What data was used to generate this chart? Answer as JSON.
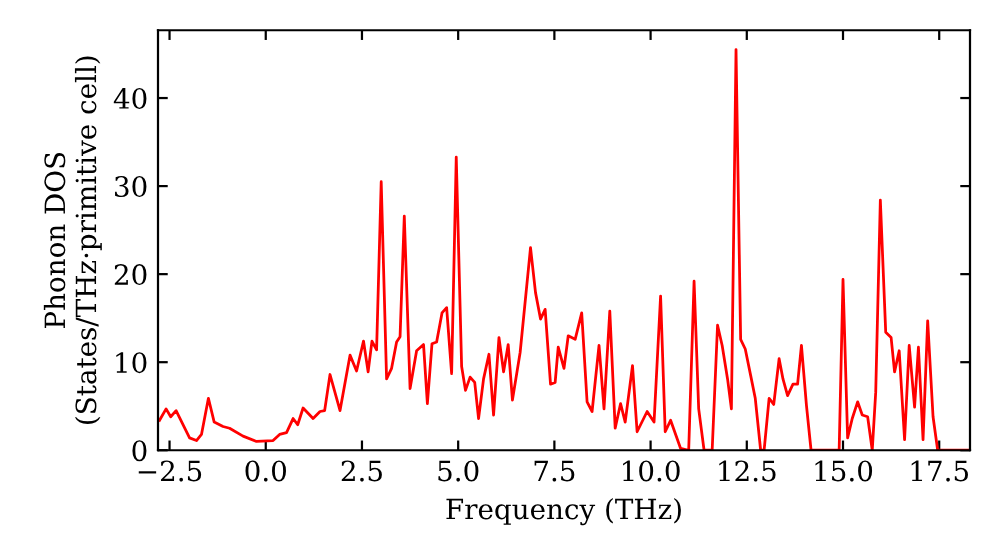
{
  "chart_data": {
    "type": "line",
    "xlabel": "Frequency (THz)",
    "ylabel": "Phonon DOS\n(States/THz·primitive cell)",
    "xlim": [
      -2.8,
      18.3
    ],
    "ylim": [
      0,
      47.7
    ],
    "xticks": [
      {
        "value": -2.5,
        "label": "−2.5"
      },
      {
        "value": 0,
        "label": "0.0"
      },
      {
        "value": 2.5,
        "label": "2.5"
      },
      {
        "value": 5,
        "label": "5.0"
      },
      {
        "value": 7.5,
        "label": "7.5"
      },
      {
        "value": 10,
        "label": "10.0"
      },
      {
        "value": 12.5,
        "label": "12.5"
      },
      {
        "value": 15,
        "label": "15.0"
      },
      {
        "value": 17.5,
        "label": "17.5"
      }
    ],
    "yticks": [
      0,
      10,
      20,
      30,
      40
    ],
    "grid": false,
    "line_style": "solid",
    "series": [
      {
        "color": "#ff0000",
        "x": [
          -2.76,
          -2.59,
          -2.47,
          -2.33,
          -1.98,
          -1.8,
          -1.67,
          -1.49,
          -1.34,
          -1.11,
          -0.94,
          -0.59,
          -0.24,
          0.19,
          0.36,
          0.54,
          0.71,
          0.83,
          0.97,
          1.23,
          1.41,
          1.53,
          1.67,
          1.93,
          2.19,
          2.36,
          2.54,
          2.66,
          2.76,
          2.88,
          3.0,
          3.14,
          3.27,
          3.4,
          3.49,
          3.6,
          3.75,
          3.92,
          4.1,
          4.2,
          4.32,
          4.44,
          4.58,
          4.7,
          4.83,
          4.95,
          5.09,
          5.19,
          5.31,
          5.43,
          5.53,
          5.66,
          5.8,
          5.92,
          6.06,
          6.18,
          6.3,
          6.41,
          6.61,
          6.88,
          7.01,
          7.14,
          7.26,
          7.4,
          7.52,
          7.6,
          7.75,
          7.86,
          8.04,
          8.21,
          8.35,
          8.48,
          8.66,
          8.79,
          8.94,
          9.08,
          9.22,
          9.34,
          9.53,
          9.65,
          9.91,
          10.09,
          10.26,
          10.38,
          10.52,
          10.78,
          10.99,
          11.13,
          11.25,
          11.39,
          11.6,
          11.74,
          11.86,
          12.0,
          12.1,
          12.22,
          12.34,
          12.46,
          12.6,
          12.72,
          12.86,
          12.95,
          13.08,
          13.2,
          13.34,
          13.44,
          13.56,
          13.7,
          13.82,
          13.92,
          14.05,
          14.17,
          14.9,
          15.0,
          15.12,
          15.24,
          15.38,
          15.5,
          15.64,
          15.76,
          15.85,
          15.97,
          16.11,
          16.25,
          16.34,
          16.46,
          16.6,
          16.72,
          16.86,
          16.96,
          17.08,
          17.2,
          17.34,
          17.46,
          18.3
        ],
        "values": [
          3.4,
          4.7,
          3.8,
          4.5,
          1.4,
          1.1,
          1.8,
          5.9,
          3.2,
          2.7,
          2.5,
          1.6,
          1.0,
          1.1,
          1.8,
          2.0,
          3.6,
          2.9,
          4.8,
          3.6,
          4.4,
          4.5,
          8.6,
          4.5,
          10.8,
          9.0,
          12.4,
          8.9,
          12.4,
          11.4,
          30.5,
          8.1,
          9.3,
          12.3,
          12.9,
          26.6,
          7.0,
          11.3,
          12.0,
          5.3,
          12.1,
          12.3,
          15.6,
          16.2,
          8.7,
          33.3,
          9.5,
          6.8,
          8.3,
          7.7,
          3.6,
          8.1,
          10.9,
          4.0,
          12.8,
          8.9,
          12.0,
          5.7,
          11.1,
          23.0,
          17.9,
          14.9,
          16.0,
          7.5,
          7.7,
          11.7,
          9.3,
          13.0,
          12.6,
          15.6,
          5.5,
          4.4,
          11.9,
          4.7,
          15.8,
          2.5,
          5.3,
          3.2,
          9.6,
          2.1,
          4.4,
          3.2,
          17.5,
          2.1,
          3.4,
          0.2,
          0,
          19.2,
          4.7,
          0,
          0,
          14.2,
          11.9,
          8.1,
          4.7,
          45.5,
          12.6,
          11.5,
          8.5,
          5.9,
          0,
          0,
          5.9,
          5.2,
          10.4,
          8.1,
          6.2,
          7.5,
          7.5,
          11.9,
          5.1,
          0,
          0,
          19.4,
          1.4,
          3.6,
          5.5,
          4.0,
          3.8,
          0,
          6.6,
          28.4,
          13.4,
          12.8,
          8.9,
          11.3,
          1.2,
          11.9,
          4.9,
          11.7,
          1.2,
          14.7,
          3.8,
          0,
          0
        ]
      }
    ]
  }
}
